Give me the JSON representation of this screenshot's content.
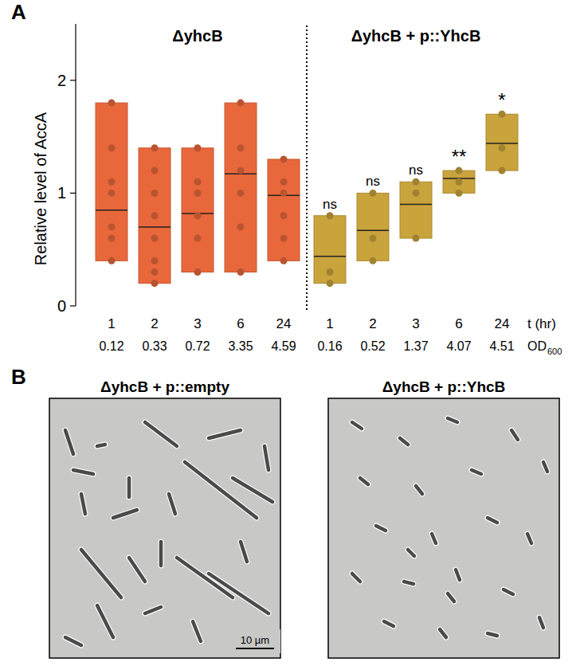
{
  "chart_data": {
    "type": "box",
    "panel_label": "A",
    "y_label": "Relative level of AccA",
    "x_label": "t (hr)",
    "od_label": {
      "text": "OD",
      "sub": "600"
    },
    "ylim": [
      0,
      2.5
    ],
    "yticks": [
      0,
      1,
      2
    ],
    "series": [
      {
        "name": "ΔyhcB",
        "color": "#e8683c",
        "categories": [
          "1",
          "2",
          "3",
          "6",
          "24"
        ],
        "od": [
          0.12,
          0.33,
          0.72,
          3.35,
          4.59
        ],
        "min": [
          0.4,
          0.2,
          0.3,
          0.3,
          0.4
        ],
        "max": [
          1.8,
          1.4,
          1.4,
          1.8,
          1.3
        ],
        "median": [
          0.85,
          0.7,
          0.82,
          1.17,
          0.98
        ],
        "points": [
          [
            1.8,
            1.4,
            1.1,
            1.0,
            0.7,
            0.6,
            0.4
          ],
          [
            1.4,
            1.2,
            1.0,
            0.8,
            0.6,
            0.4,
            0.3,
            0.2
          ],
          [
            1.4,
            1.1,
            1.0,
            0.8,
            0.6,
            0.3
          ],
          [
            1.8,
            1.4,
            1.2,
            1.0,
            0.7,
            0.3
          ],
          [
            1.3,
            1.1,
            1.0,
            0.8,
            0.6,
            0.4
          ]
        ]
      },
      {
        "name": "ΔyhcB + p::YhcB",
        "color": "#c9a33c",
        "categories": [
          "1",
          "2",
          "3",
          "6",
          "24"
        ],
        "od": [
          0.16,
          0.52,
          1.37,
          4.07,
          4.51
        ],
        "min": [
          0.2,
          0.4,
          0.6,
          1.0,
          1.2
        ],
        "max": [
          0.8,
          1.0,
          1.1,
          1.2,
          1.7
        ],
        "median": [
          0.44,
          0.67,
          0.9,
          1.13,
          1.44
        ],
        "points": [
          [
            0.8,
            0.3,
            0.2
          ],
          [
            1.0,
            0.6,
            0.4
          ],
          [
            1.1,
            1.0,
            0.6
          ],
          [
            1.2,
            1.1,
            1.0
          ],
          [
            1.7,
            1.4,
            1.2
          ]
        ],
        "significance": [
          "ns",
          "ns",
          "ns",
          "**",
          "*"
        ]
      }
    ]
  },
  "panel_b": {
    "panel_label": "B",
    "images": [
      {
        "title": "ΔyhcB + p::empty"
      },
      {
        "title": "ΔyhcB + p::YhcB"
      }
    ],
    "scale_bar": "10 µm"
  }
}
